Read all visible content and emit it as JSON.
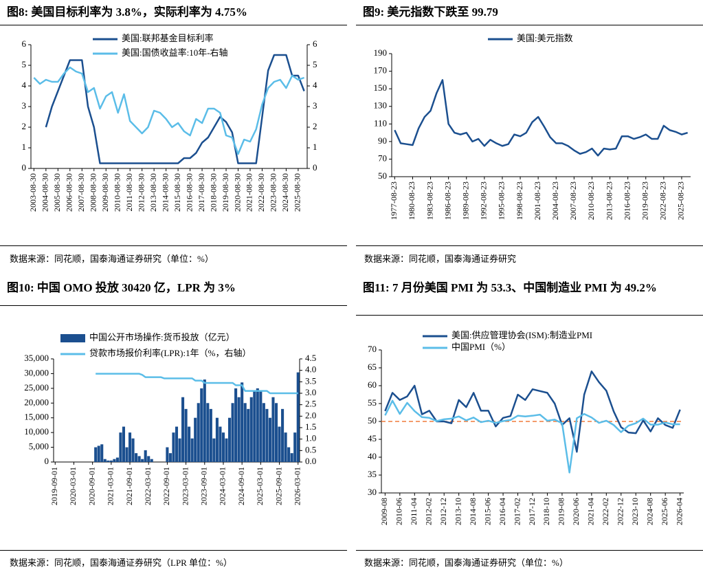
{
  "chart_data": [
    {
      "type": "line",
      "title": "图8:  美国目标利率为 3.8%，实际利率为 4.75%",
      "source": "数据来源：同花顺，国泰海通证券研究（单位：%）",
      "categories": [
        "2003-08-30",
        null,
        "2004-08-30",
        null,
        "2005-08-30",
        null,
        "2006-08-30",
        null,
        "2007-08-30",
        null,
        "2008-08-30",
        null,
        "2009-08-30",
        null,
        "2010-08-30",
        null,
        "2011-08-30",
        null,
        "2012-08-30",
        null,
        "2013-08-30",
        null,
        "2014-08-30",
        null,
        "2015-08-30",
        null,
        "2016-08-30",
        null,
        "2017-08-30",
        null,
        "2018-08-30",
        null,
        "2019-08-30",
        null,
        "2020-08-30",
        null,
        "2021-08-30",
        null,
        "2022-08-30",
        null,
        "2023-08-30",
        null,
        "2024-08-30",
        null,
        "2025-08-30",
        null
      ],
      "series": [
        {
          "name": "美国:联邦基金目标利率",
          "color": "#1b4f8f",
          "values": [
            null,
            null,
            2.0,
            3.0,
            3.75,
            4.5,
            5.25,
            5.25,
            5.25,
            3.0,
            2.0,
            0.25,
            0.25,
            0.25,
            0.25,
            0.25,
            0.25,
            0.25,
            0.25,
            0.25,
            0.25,
            0.25,
            0.25,
            0.25,
            0.25,
            0.5,
            0.5,
            0.75,
            1.25,
            1.5,
            2.0,
            2.5,
            2.25,
            1.75,
            0.25,
            0.25,
            0.25,
            0.25,
            2.5,
            4.75,
            5.5,
            5.5,
            5.5,
            4.5,
            4.5,
            3.75
          ]
        },
        {
          "name": "美国:国债收益率:10年-右轴",
          "color": "#5bbde8",
          "axis": "y2",
          "values": [
            4.4,
            4.1,
            4.3,
            4.2,
            4.2,
            4.6,
            4.9,
            4.7,
            4.6,
            3.7,
            3.9,
            2.9,
            3.5,
            3.7,
            2.7,
            3.6,
            2.3,
            2.0,
            1.7,
            2.0,
            2.8,
            2.7,
            2.4,
            2.0,
            2.2,
            1.8,
            1.6,
            2.4,
            2.2,
            2.9,
            2.9,
            2.7,
            1.6,
            1.5,
            0.7,
            1.4,
            1.3,
            1.9,
            3.1,
            3.9,
            4.2,
            4.3,
            3.9,
            4.5,
            4.3,
            4.4
          ]
        }
      ],
      "ylim": [
        0,
        6
      ],
      "yticks": [
        0,
        1,
        2,
        3,
        4,
        5,
        6
      ],
      "y2lim": [
        0,
        6
      ],
      "y2ticks": [
        0,
        1,
        2,
        3,
        4,
        5,
        6
      ],
      "legend": "upper left"
    },
    {
      "type": "line",
      "title": "图9:  美元指数下跌至 99.79",
      "source": "数据来源：同花顺，国泰海通证券研究",
      "categories": [
        "1977-08-23",
        null,
        null,
        "1980-08-23",
        null,
        null,
        "1983-08-23",
        null,
        null,
        "1986-08-23",
        null,
        null,
        "1989-08-23",
        null,
        null,
        "1992-08-23",
        null,
        null,
        "1995-08-23",
        null,
        null,
        "1998-08-23",
        null,
        null,
        "2001-08-23",
        null,
        null,
        "2004-08-23",
        null,
        null,
        "2007-08-23",
        null,
        null,
        "2010-08-23",
        null,
        null,
        "2013-08-23",
        null,
        null,
        "2016-08-23",
        null,
        null,
        "2019-08-23",
        null,
        null,
        "2022-08-23",
        null,
        null,
        "2025-08-23",
        null
      ],
      "series": [
        {
          "name": "美国:美元指数",
          "color": "#1b4f8f",
          "values": [
            103,
            88,
            87,
            86,
            105,
            118,
            125,
            145,
            160,
            110,
            100,
            98,
            100,
            90,
            93,
            85,
            92,
            88,
            85,
            87,
            98,
            96,
            100,
            112,
            118,
            107,
            95,
            88,
            88,
            85,
            80,
            76,
            78,
            82,
            74,
            82,
            81,
            82,
            96,
            96,
            93,
            95,
            98,
            93,
            93,
            108,
            103,
            101,
            98,
            100
          ]
        }
      ],
      "ylim": [
        50,
        190
      ],
      "yticks": [
        50,
        70,
        90,
        110,
        130,
        150,
        170,
        190
      ],
      "legend": "upper center"
    },
    {
      "type": "combo",
      "title": "图10:  中国 OMO 投放 30420 亿，LPR 为 3%",
      "source": "数据来源：同花顺，国泰海通证券研究（LPR 单位：%）",
      "categories": [
        "2019-09-01",
        null,
        null,
        null,
        null,
        null,
        "2020-03-01",
        null,
        null,
        null,
        null,
        null,
        "2020-09-01",
        null,
        null,
        null,
        null,
        null,
        "2021-03-01",
        null,
        null,
        null,
        null,
        null,
        "2021-09-01",
        null,
        null,
        null,
        null,
        null,
        "2022-03-01",
        null,
        null,
        null,
        null,
        null,
        "2022-09-01",
        null,
        null,
        null,
        null,
        null,
        "2023-03-01",
        null,
        null,
        null,
        null,
        null,
        "2023-09-01",
        null,
        null,
        null,
        null,
        null,
        "2024-03-01",
        null,
        null,
        null,
        null,
        null,
        "2024-09-01",
        null,
        null,
        null,
        null,
        null,
        "2025-03-01",
        null,
        null,
        null,
        null,
        null,
        "2025-09-01",
        null,
        null,
        null,
        null,
        null,
        "2026-03-01"
      ],
      "series": [
        {
          "name": "中国公开市场操作:货币投放（亿元）",
          "type": "bar",
          "color": "#1b4f8f",
          "values": [
            0,
            0,
            0,
            0,
            0,
            0,
            0,
            0,
            0,
            0,
            0,
            0,
            0,
            5000,
            5500,
            6000,
            1000,
            500,
            500,
            1000,
            1500,
            10000,
            12000,
            5000,
            10000,
            8000,
            3000,
            2000,
            1000,
            4000,
            2000,
            1000,
            0,
            0,
            0,
            0,
            5000,
            3000,
            10000,
            12000,
            8000,
            22000,
            18000,
            12000,
            8000,
            15000,
            20000,
            25000,
            28000,
            20000,
            18000,
            8000,
            15000,
            12000,
            10000,
            8000,
            15000,
            20000,
            25000,
            22000,
            27000,
            20000,
            18000,
            22000,
            24000,
            25000,
            24000,
            20000,
            18000,
            15000,
            22000,
            20000,
            12000,
            18000,
            10000,
            5000,
            3000,
            10000,
            30420
          ]
        },
        {
          "name": "贷款市场报价利率(LPR):1年（%，右轴）",
          "type": "line",
          "axis": "y2",
          "color": "#5bbde8",
          "values": [
            null,
            null,
            null,
            null,
            null,
            null,
            null,
            null,
            null,
            null,
            null,
            null,
            null,
            3.85,
            3.85,
            3.85,
            3.85,
            3.85,
            3.85,
            3.85,
            3.85,
            3.85,
            3.85,
            3.85,
            3.85,
            3.85,
            3.85,
            3.85,
            3.8,
            3.7,
            3.7,
            3.7,
            3.7,
            3.7,
            3.7,
            3.65,
            3.65,
            3.65,
            3.65,
            3.65,
            3.65,
            3.65,
            3.65,
            3.65,
            3.65,
            3.55,
            3.55,
            3.55,
            3.45,
            3.45,
            3.45,
            3.45,
            3.45,
            3.45,
            3.45,
            3.45,
            3.45,
            3.45,
            3.35,
            3.35,
            3.35,
            3.1,
            3.1,
            3.1,
            3.1,
            3.1,
            3.1,
            3.1,
            3.1,
            3.0,
            3.0,
            3.0,
            3.0,
            3.0,
            3.0,
            3.0,
            3.0,
            3.0,
            3.0
          ]
        }
      ],
      "ylim": [
        0,
        35000
      ],
      "yticks": [
        0,
        {
          "value": 5000,
          "label": "5,000"
        },
        {
          "value": 10000,
          "label": "10,000"
        },
        {
          "value": 15000,
          "label": "15,000"
        },
        {
          "value": 20000,
          "label": "20,000"
        },
        {
          "value": 25000,
          "label": "25,000"
        },
        {
          "value": 30000,
          "label": "30,000"
        },
        {
          "value": 35000,
          "label": "35,000"
        }
      ],
      "y2lim": [
        0,
        4.5
      ],
      "y2ticks": [
        {
          "value": 0,
          "label": "0.0"
        },
        0.5,
        {
          "value": 1,
          "label": "1.0"
        },
        1.5,
        {
          "value": 2,
          "label": "2.0"
        },
        2.5,
        {
          "value": 3,
          "label": "3.0"
        },
        3.5,
        {
          "value": 4,
          "label": "4.0"
        },
        4.5
      ],
      "legend": "upper left"
    },
    {
      "type": "line",
      "title": "图11:  7 月份美国 PMI 为 53.3、中国制造业 PMI 为 49.2%",
      "source": "数据来源：同花顺，国泰海通证券研究（单位：%）",
      "categories": [
        "2009-08",
        null,
        "2010-06",
        null,
        "2011-04",
        null,
        "2012-02",
        null,
        "2012-12",
        null,
        "2013-10",
        null,
        "2014-08",
        null,
        "2015-06",
        null,
        "2016-04",
        null,
        "2017-02",
        null,
        "2017-12",
        null,
        "2018-10",
        null,
        "2019-08",
        null,
        "2020-06",
        null,
        "2021-04",
        null,
        "2022-02",
        null,
        "2022-12",
        null,
        "2023-10",
        null,
        "2024-08",
        null,
        "2025-06",
        null,
        "2026-04"
      ],
      "series": [
        {
          "name": "美国:供应管理协会(ISM):制造业PMI",
          "color": "#1b4f8f",
          "values": [
            52.9,
            58,
            56,
            57,
            60,
            52,
            53,
            50,
            50,
            49.5,
            56,
            54,
            58,
            53,
            53,
            48.6,
            51,
            51.5,
            57.5,
            56,
            59,
            58.5,
            58,
            55,
            49,
            50.9,
            41.5,
            57.5,
            64,
            61,
            58.6,
            52.8,
            48.4,
            46.9,
            46.7,
            50.3,
            47.2,
            50.9,
            49,
            48.2,
            53.3
          ]
        },
        {
          "name": "中国PMI（%）",
          "color": "#5bbde8",
          "values": [
            51.7,
            55.8,
            52.1,
            55.2,
            52.9,
            51.2,
            51.0,
            50.1,
            50.6,
            50.8,
            51.4,
            50.3,
            51.1,
            49.8,
            50.2,
            49.6,
            50.1,
            50.4,
            51.6,
            51.4,
            51.6,
            51.9,
            50.2,
            50.5,
            49.5,
            35.7,
            50.9,
            52.1,
            51.1,
            49.6,
            50.2,
            49.0,
            47.0,
            48.8,
            49.5,
            50.8,
            49.1,
            49.1,
            49.7,
            49.2,
            49.2
          ]
        }
      ],
      "ylim": [
        30,
        70
      ],
      "yticks": [
        30,
        35,
        40,
        45,
        50,
        55,
        60,
        65,
        70
      ],
      "hline": 50,
      "hline_color": "#f07a3a",
      "legend": "upper left"
    }
  ]
}
